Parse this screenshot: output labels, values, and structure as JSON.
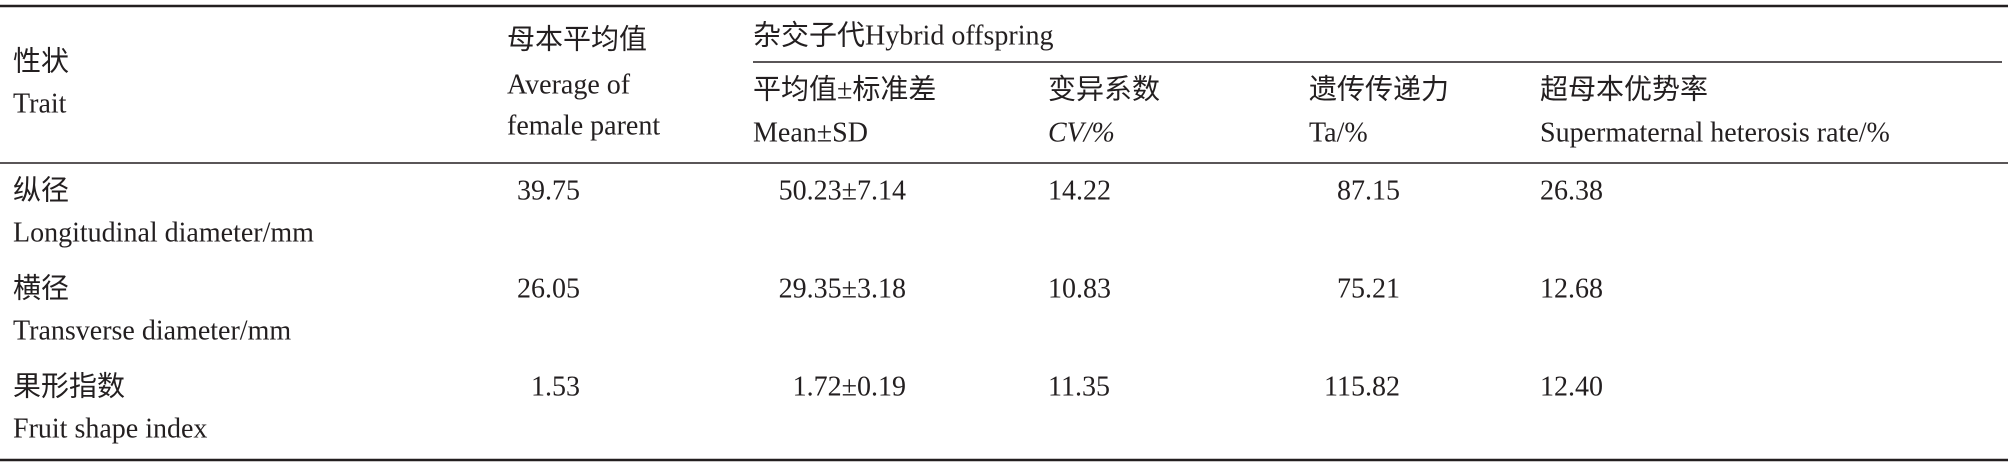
{
  "header": {
    "trait": [
      "性状",
      "Trait"
    ],
    "female_parent": [
      "母本平均值",
      "Average of",
      "female parent"
    ],
    "hybrid": "杂交子代Hybrid offspring",
    "columns": [
      [
        "平均值±标准差",
        "Mean±SD"
      ],
      [
        "变异系数",
        "CV/%"
      ],
      [
        "遗传传递力",
        "Ta/%"
      ],
      [
        "超母本优势率",
        "Supermaternal heterosis rate/%"
      ]
    ]
  },
  "table": {
    "rows": [
      {
        "trait": [
          "纵径",
          "Longitudinal diameter/mm"
        ],
        "cells": [
          "39.75",
          "50.23±7.14",
          "14.22",
          "87.15",
          "26.38"
        ]
      },
      {
        "trait": [
          "横径",
          "Transverse diameter/mm"
        ],
        "cells": [
          "26.05",
          "29.35±3.18",
          "10.83",
          "75.21",
          "12.68"
        ]
      },
      {
        "trait": [
          "果形指数",
          "Fruit shape index"
        ],
        "cells": [
          "1.53",
          "1.72±0.19",
          "11.35",
          "115.82",
          "12.40"
        ]
      }
    ]
  }
}
